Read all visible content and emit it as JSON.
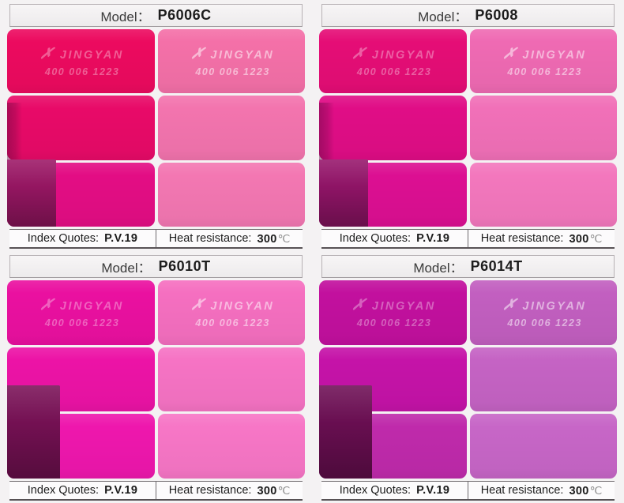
{
  "page": {
    "background": "#f4f2f3"
  },
  "labels": {
    "model_label": "Model：",
    "index_label": "Index Quotes:",
    "index_value": "P.V.19",
    "heat_label": "Heat resistance:",
    "heat_value": "300",
    "heat_unit": "℃"
  },
  "brand": {
    "logo_glyph": "✗",
    "name": "JINGYAN",
    "phone": "400 006 1223"
  },
  "panels": [
    {
      "model": "P6006C",
      "left_bands": [
        "#ec0a5f",
        "#e80a68",
        "#e30d84"
      ],
      "corner": "#9c1766",
      "right_bands": [
        "#f470a8",
        "#f374ae",
        "#f377b2"
      ]
    },
    {
      "model": "P6008",
      "left_bands": [
        "#e50d76",
        "#e00d86",
        "#dc0f92"
      ],
      "corner": "#96156b",
      "right_bands": [
        "#ef6ab3",
        "#f170b8",
        "#f377bd"
      ]
    },
    {
      "model": "P6010T",
      "left_bands": [
        "#ea10a0",
        "#ec13a6",
        "#ee17ad"
      ],
      "corner": "#7a1157",
      "right_bands": [
        "#f56fc0",
        "#f673c4",
        "#f776c6"
      ]
    },
    {
      "model": "P6014T",
      "left_bands": [
        "#c2109e",
        "#c513a8",
        "#bf2aab"
      ],
      "corner": "#6e0f55",
      "right_bands": [
        "#c25fc0",
        "#c563c4",
        "#c766c7"
      ]
    }
  ]
}
